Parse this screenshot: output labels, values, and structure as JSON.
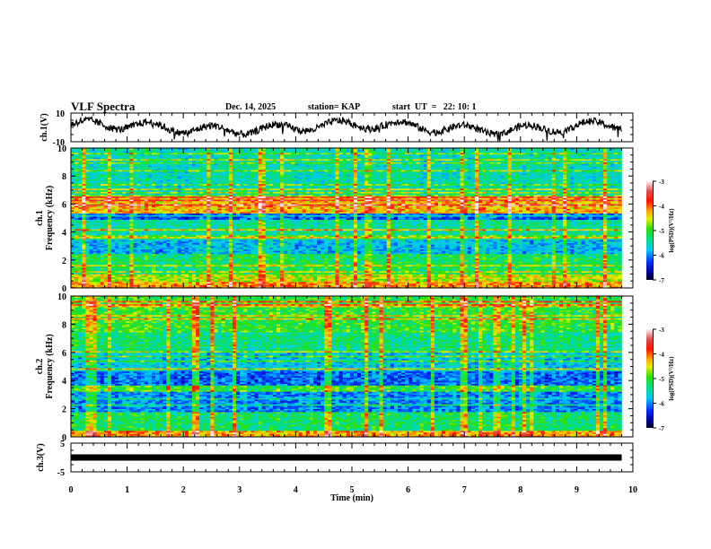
{
  "header": {
    "title": "VLF Spectra",
    "date": "Dec. 14, 2025",
    "station": "station= KAP",
    "start_time": "start  UT  =   22: 10: 1"
  },
  "chart_data": [
    {
      "type": "line",
      "name": "ch1-waveform",
      "ylabel": "ch.1(V)",
      "ylim": [
        -10,
        10
      ],
      "yticks": [
        "10",
        "-10"
      ],
      "xlim": [
        0,
        10
      ],
      "data_end_min": 9.8,
      "description": "noisy voltage waveform, oscillating roughly between -8 and 8 V"
    },
    {
      "type": "heatmap",
      "name": "ch1-spectrogram",
      "ylabel_line1": "ch.1",
      "ylabel_line2": "Frequency (kHz)",
      "ylim": [
        0,
        10
      ],
      "yticks": [
        "0",
        "2",
        "4",
        "6",
        "8",
        "10"
      ],
      "xlim": [
        0,
        10
      ],
      "data_end_min": 9.8,
      "colorbar": {
        "label": "log(PSD)(V²/Hz)",
        "range": [
          -7,
          -3
        ],
        "ticks": [
          "-3",
          "-4",
          "-5",
          "-6",
          "-7"
        ]
      },
      "bands": [
        {
          "f0": 0.0,
          "f1": 0.4,
          "level": -4.2
        },
        {
          "f0": 0.4,
          "f1": 1.0,
          "level": -4.6
        },
        {
          "f0": 1.0,
          "f1": 2.5,
          "level": -5.2
        },
        {
          "f0": 2.5,
          "f1": 3.5,
          "level": -5.8
        },
        {
          "f0": 3.5,
          "f1": 4.9,
          "level": -5.4
        },
        {
          "f0": 4.9,
          "f1": 5.3,
          "level": -6.2
        },
        {
          "f0": 5.3,
          "f1": 6.6,
          "level": -4.3
        },
        {
          "f0": 6.6,
          "f1": 10.0,
          "level": -5.5
        }
      ]
    },
    {
      "type": "heatmap",
      "name": "ch2-spectrogram",
      "ylabel_line1": "ch.2",
      "ylabel_line2": "Frequency (kHz)",
      "ylim": [
        0,
        10
      ],
      "yticks": [
        "0",
        "2",
        "4",
        "6",
        "8",
        "10"
      ],
      "xlim": [
        0,
        10
      ],
      "data_end_min": 9.8,
      "colorbar": {
        "label": "log(PSD)(V²/Hz)",
        "range": [
          -7,
          -3
        ],
        "ticks": [
          "-3",
          "-4",
          "-5",
          "-6",
          "-7"
        ]
      },
      "bands": [
        {
          "f0": 0.0,
          "f1": 0.4,
          "level": -4.2
        },
        {
          "f0": 0.4,
          "f1": 1.8,
          "level": -5.2
        },
        {
          "f0": 1.8,
          "f1": 3.2,
          "level": -6.0
        },
        {
          "f0": 3.2,
          "f1": 3.7,
          "level": -5.0
        },
        {
          "f0": 3.7,
          "f1": 4.7,
          "level": -6.1
        },
        {
          "f0": 4.7,
          "f1": 6.0,
          "level": -5.7
        },
        {
          "f0": 6.0,
          "f1": 7.5,
          "level": -5.3
        },
        {
          "f0": 7.5,
          "f1": 10.0,
          "level": -5.0
        }
      ]
    },
    {
      "type": "line",
      "name": "ch3-waveform",
      "ylabel": "ch.3(V)",
      "ylim": [
        -5,
        5
      ],
      "yticks": [
        "5",
        "-5"
      ],
      "xlim": [
        0,
        10
      ],
      "data_end_min": 9.8,
      "constant_value": 0,
      "description": "flat line near 0 V"
    }
  ],
  "xaxis": {
    "label": "Time  (min)",
    "ticks": [
      "0",
      "1",
      "2",
      "3",
      "4",
      "5",
      "6",
      "7",
      "8",
      "9",
      "10"
    ]
  }
}
